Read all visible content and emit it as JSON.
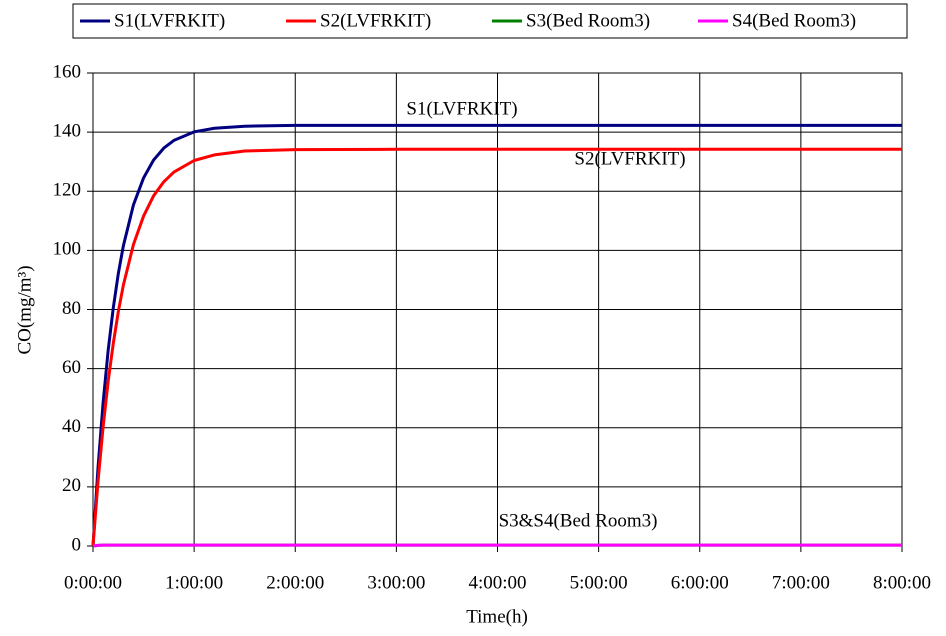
{
  "chart_data": {
    "type": "line",
    "x_label": "Time(h)",
    "y_label": "CO(mg/m³)",
    "x": [
      0,
      0.05,
      0.1,
      0.15,
      0.2,
      0.25,
      0.3,
      0.4,
      0.5,
      0.6,
      0.7,
      0.8,
      1,
      1.2,
      1.5,
      2,
      3,
      4,
      5,
      6,
      7,
      8
    ],
    "series": [
      {
        "name": "S1(LVFRKIT)",
        "color": "#000080",
        "values": [
          0,
          26.7,
          48.5,
          66.2,
          80.4,
          92.1,
          101.5,
          115.4,
          124.5,
          130.6,
          134.6,
          137.2,
          140.1,
          141.3,
          142.0,
          142.3,
          142.3,
          142.3,
          142.3,
          142.3,
          142.3,
          142.3
        ]
      },
      {
        "name": "S2(LVFRKIT)",
        "color": "#ff0000",
        "values": [
          0,
          22.0,
          40.3,
          55.7,
          68.4,
          79.2,
          88.2,
          102.0,
          111.6,
          118.5,
          123.2,
          126.5,
          130.4,
          132.3,
          133.6,
          134.1,
          134.2,
          134.2,
          134.2,
          134.2,
          134.2,
          134.2
        ]
      },
      {
        "name": "S3(Bed Room3)",
        "color": "#008000",
        "values": [
          0,
          0.2,
          0.3,
          0.3,
          0.3,
          0.3,
          0.3,
          0.3,
          0.3,
          0.3,
          0.3,
          0.3,
          0.3,
          0.3,
          0.3,
          0.3,
          0.3,
          0.3,
          0.3,
          0.3,
          0.3,
          0.3
        ]
      },
      {
        "name": "S4(Bed Room3)",
        "color": "#ff00ff",
        "values": [
          0,
          0.2,
          0.3,
          0.3,
          0.3,
          0.3,
          0.3,
          0.3,
          0.3,
          0.3,
          0.3,
          0.3,
          0.3,
          0.3,
          0.3,
          0.3,
          0.3,
          0.3,
          0.3,
          0.3,
          0.3,
          0.3
        ]
      }
    ],
    "annotations": [
      "S1(LVFRKIT)",
      "S2(LVFRKIT)",
      "S3&S4(Bed Room3)"
    ],
    "xlim": [
      0,
      8
    ],
    "xticks": [
      {
        "value": 0,
        "label": "0:00:00"
      },
      {
        "value": 1,
        "label": "1:00:00"
      },
      {
        "value": 2,
        "label": "2:00:00"
      },
      {
        "value": 3,
        "label": "3:00:00"
      },
      {
        "value": 4,
        "label": "4:00:00"
      },
      {
        "value": 5,
        "label": "5:00:00"
      },
      {
        "value": 6,
        "label": "6:00:00"
      },
      {
        "value": 7,
        "label": "7:00:00"
      },
      {
        "value": 8,
        "label": "8:00:00"
      }
    ],
    "ylim": [
      0,
      160
    ],
    "yticks": [
      0,
      20,
      40,
      60,
      80,
      100,
      120,
      140,
      160
    ],
    "grid": true,
    "legend": "top"
  }
}
